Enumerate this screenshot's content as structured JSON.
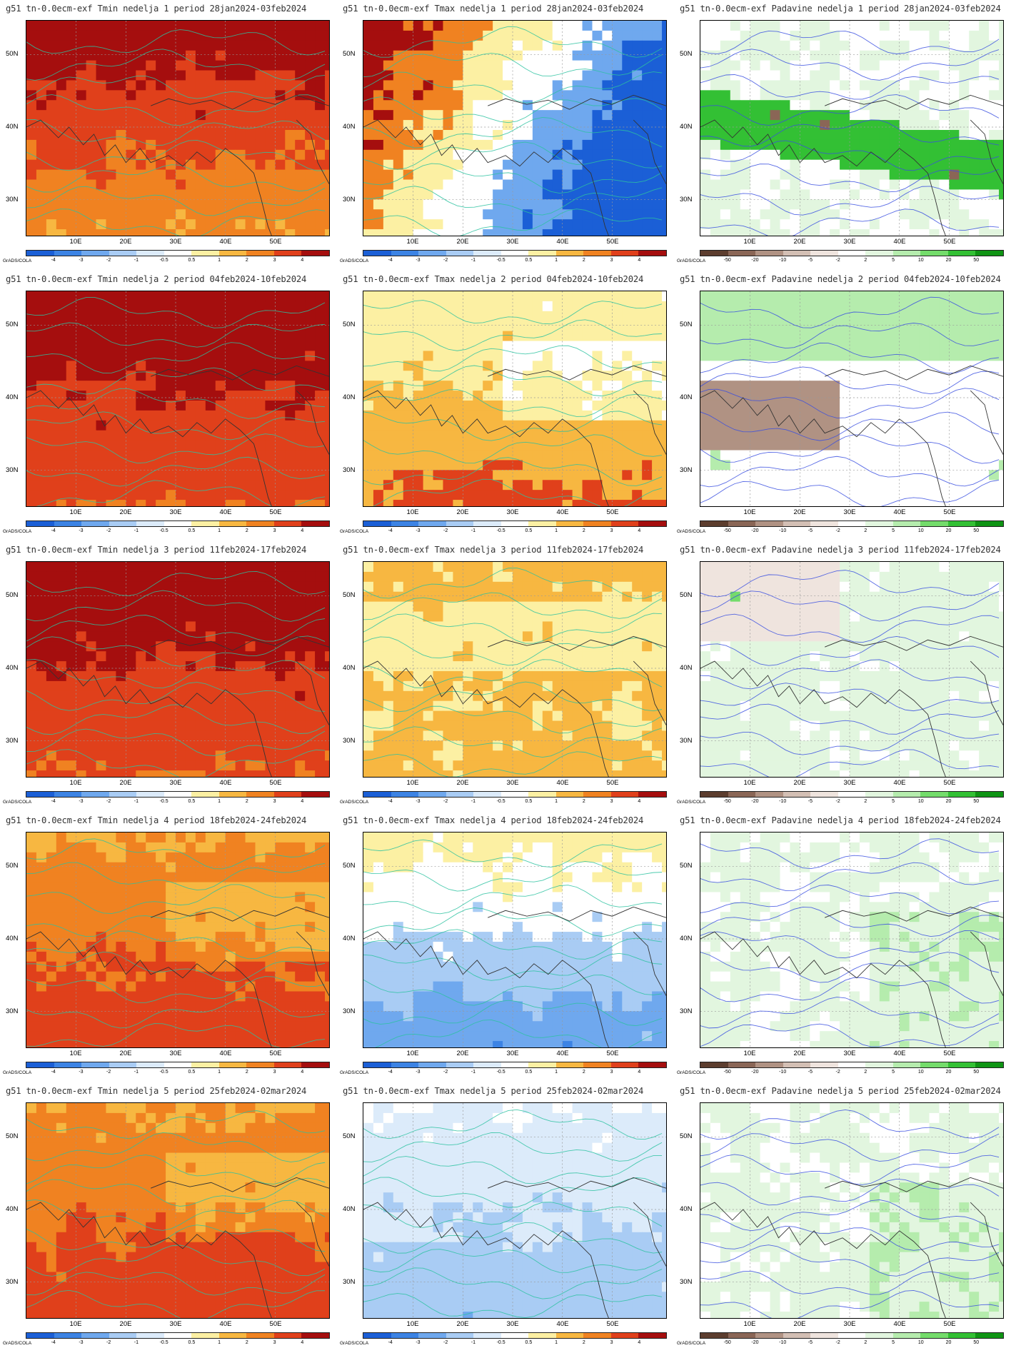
{
  "x_ticks": [
    "10E",
    "20E",
    "30E",
    "40E",
    "50E"
  ],
  "y_ticks": [
    "50N",
    "40N",
    "30N"
  ],
  "grads_label": "GrADS/COLA",
  "legends": {
    "temp": {
      "labels": [
        "-4",
        "-3",
        "-2",
        "-1",
        "-0.5",
        "0.5",
        "1",
        "2",
        "3",
        "4"
      ],
      "colors": [
        "#1b5fd6",
        "#3c83e4",
        "#6fa8ee",
        "#a9ccf4",
        "#dcebfa",
        "#ffffff",
        "#fcf0a3",
        "#f7b741",
        "#f08221",
        "#e0401b",
        "#a50e0e"
      ]
    },
    "precip": {
      "labels": [
        "-50",
        "-20",
        "-10",
        "-5",
        "-2",
        "2",
        "5",
        "10",
        "20",
        "50"
      ],
      "colors": [
        "#5c3d2e",
        "#8a6656",
        "#b09283",
        "#d3bfb4",
        "#efe4de",
        "#ffffff",
        "#e2f6df",
        "#b5ecad",
        "#74dc6b",
        "#33c034",
        "#0f9414"
      ]
    }
  },
  "panels": [
    {
      "title": "g51 tn-0.0ecm-exf Tmin nedelja 1 period 28jan2024-03feb2024",
      "legend": "temp",
      "anomaly": "warm-strong",
      "fill_colors": [
        "#a50e0e",
        "#e0401b",
        "#f08221",
        "#f7b741",
        "#ffffff",
        "#6fa8ee"
      ]
    },
    {
      "title": "g51 tn-0.0ecm-exf Tmax nedelja 1 period 28jan2024-03feb2024",
      "legend": "temp",
      "anomaly": "warm-west-cold-east",
      "fill_colors": [
        "#a50e0e",
        "#f08221",
        "#fcf0a3",
        "#ffffff",
        "#6fa8ee",
        "#1b5fd6"
      ]
    },
    {
      "title": "g51 tn-0.0ecm-exf Padavine nedelja 1 period 28jan2024-03feb2024",
      "legend": "precip",
      "anomaly": "dry-band",
      "fill_colors": [
        "#ffffff",
        "#e2f6df",
        "#b09283",
        "#8a6656",
        "#33c034"
      ]
    },
    {
      "title": "g51 tn-0.0ecm-exf Tmin nedelja 2 period 04feb2024-10feb2024",
      "legend": "temp",
      "anomaly": "warm-strong",
      "fill_colors": [
        "#a50e0e",
        "#e0401b",
        "#f08221",
        "#f7b741"
      ]
    },
    {
      "title": "g51 tn-0.0ecm-exf Tmax nedelja 2 period 04feb2024-10feb2024",
      "legend": "temp",
      "anomaly": "warm-moderate",
      "fill_colors": [
        "#ffffff",
        "#fcf0a3",
        "#f7b741",
        "#e0401b",
        "#a9ccf4"
      ]
    },
    {
      "title": "g51 tn-0.0ecm-exf Padavine nedelja 2 period 04feb2024-10feb2024",
      "legend": "precip",
      "anomaly": "mixed",
      "fill_colors": [
        "#ffffff",
        "#b5ecad",
        "#d3bfb4",
        "#b09283",
        "#33c034"
      ]
    },
    {
      "title": "g51 tn-0.0ecm-exf Tmin nedelja 3 period 11feb2024-17feb2024",
      "legend": "temp",
      "anomaly": "warm-strong",
      "fill_colors": [
        "#a50e0e",
        "#e0401b",
        "#f08221",
        "#f7b741"
      ]
    },
    {
      "title": "g51 tn-0.0ecm-exf Tmax nedelja 3 period 11feb2024-17feb2024",
      "legend": "temp",
      "anomaly": "weak-warm",
      "fill_colors": [
        "#ffffff",
        "#fcf0a3",
        "#f7b741",
        "#dcebfa"
      ]
    },
    {
      "title": "g51 tn-0.0ecm-exf Padavine nedelja 3 period 11feb2024-17feb2024",
      "legend": "precip",
      "anomaly": "wet-north",
      "fill_colors": [
        "#ffffff",
        "#e2f6df",
        "#b5ecad",
        "#74dc6b",
        "#efe4de"
      ]
    },
    {
      "title": "g51 tn-0.0ecm-exf Tmin nedelja 4 period 18feb2024-24feb2024",
      "legend": "temp",
      "anomaly": "warm-moderate",
      "fill_colors": [
        "#f7b741",
        "#f08221",
        "#e0401b",
        "#a50e0e"
      ]
    },
    {
      "title": "g51 tn-0.0ecm-exf Tmax nedelja 4 period 18feb2024-24feb2024",
      "legend": "temp",
      "anomaly": "cold-north",
      "fill_colors": [
        "#3c83e4",
        "#6fa8ee",
        "#a9ccf4",
        "#ffffff",
        "#fcf0a3",
        "#f7b741"
      ]
    },
    {
      "title": "g51 tn-0.0ecm-exf Padavine nedelja 4 period 18feb2024-24feb2024",
      "legend": "precip",
      "anomaly": "light-wet",
      "fill_colors": [
        "#ffffff",
        "#e2f6df",
        "#b5ecad",
        "#efe4de"
      ]
    },
    {
      "title": "g51 tn-0.0ecm-exf Tmin nedelja 5 period 25feb2024-02mar2024",
      "legend": "temp",
      "anomaly": "warm-moderate",
      "fill_colors": [
        "#f7b741",
        "#f08221",
        "#e0401b",
        "#a50e0e"
      ]
    },
    {
      "title": "g51 tn-0.0ecm-exf Tmax nedelja 5 period 25feb2024-02mar2024",
      "legend": "temp",
      "anomaly": "cold",
      "fill_colors": [
        "#3c83e4",
        "#6fa8ee",
        "#a9ccf4",
        "#dcebfa",
        "#ffffff"
      ]
    },
    {
      "title": "g51 tn-0.0ecm-exf Padavine nedelja 5 period 25feb2024-02mar2024",
      "legend": "precip",
      "anomaly": "light-wet",
      "fill_colors": [
        "#ffffff",
        "#e2f6df",
        "#b5ecad",
        "#74dc6b"
      ]
    }
  ]
}
